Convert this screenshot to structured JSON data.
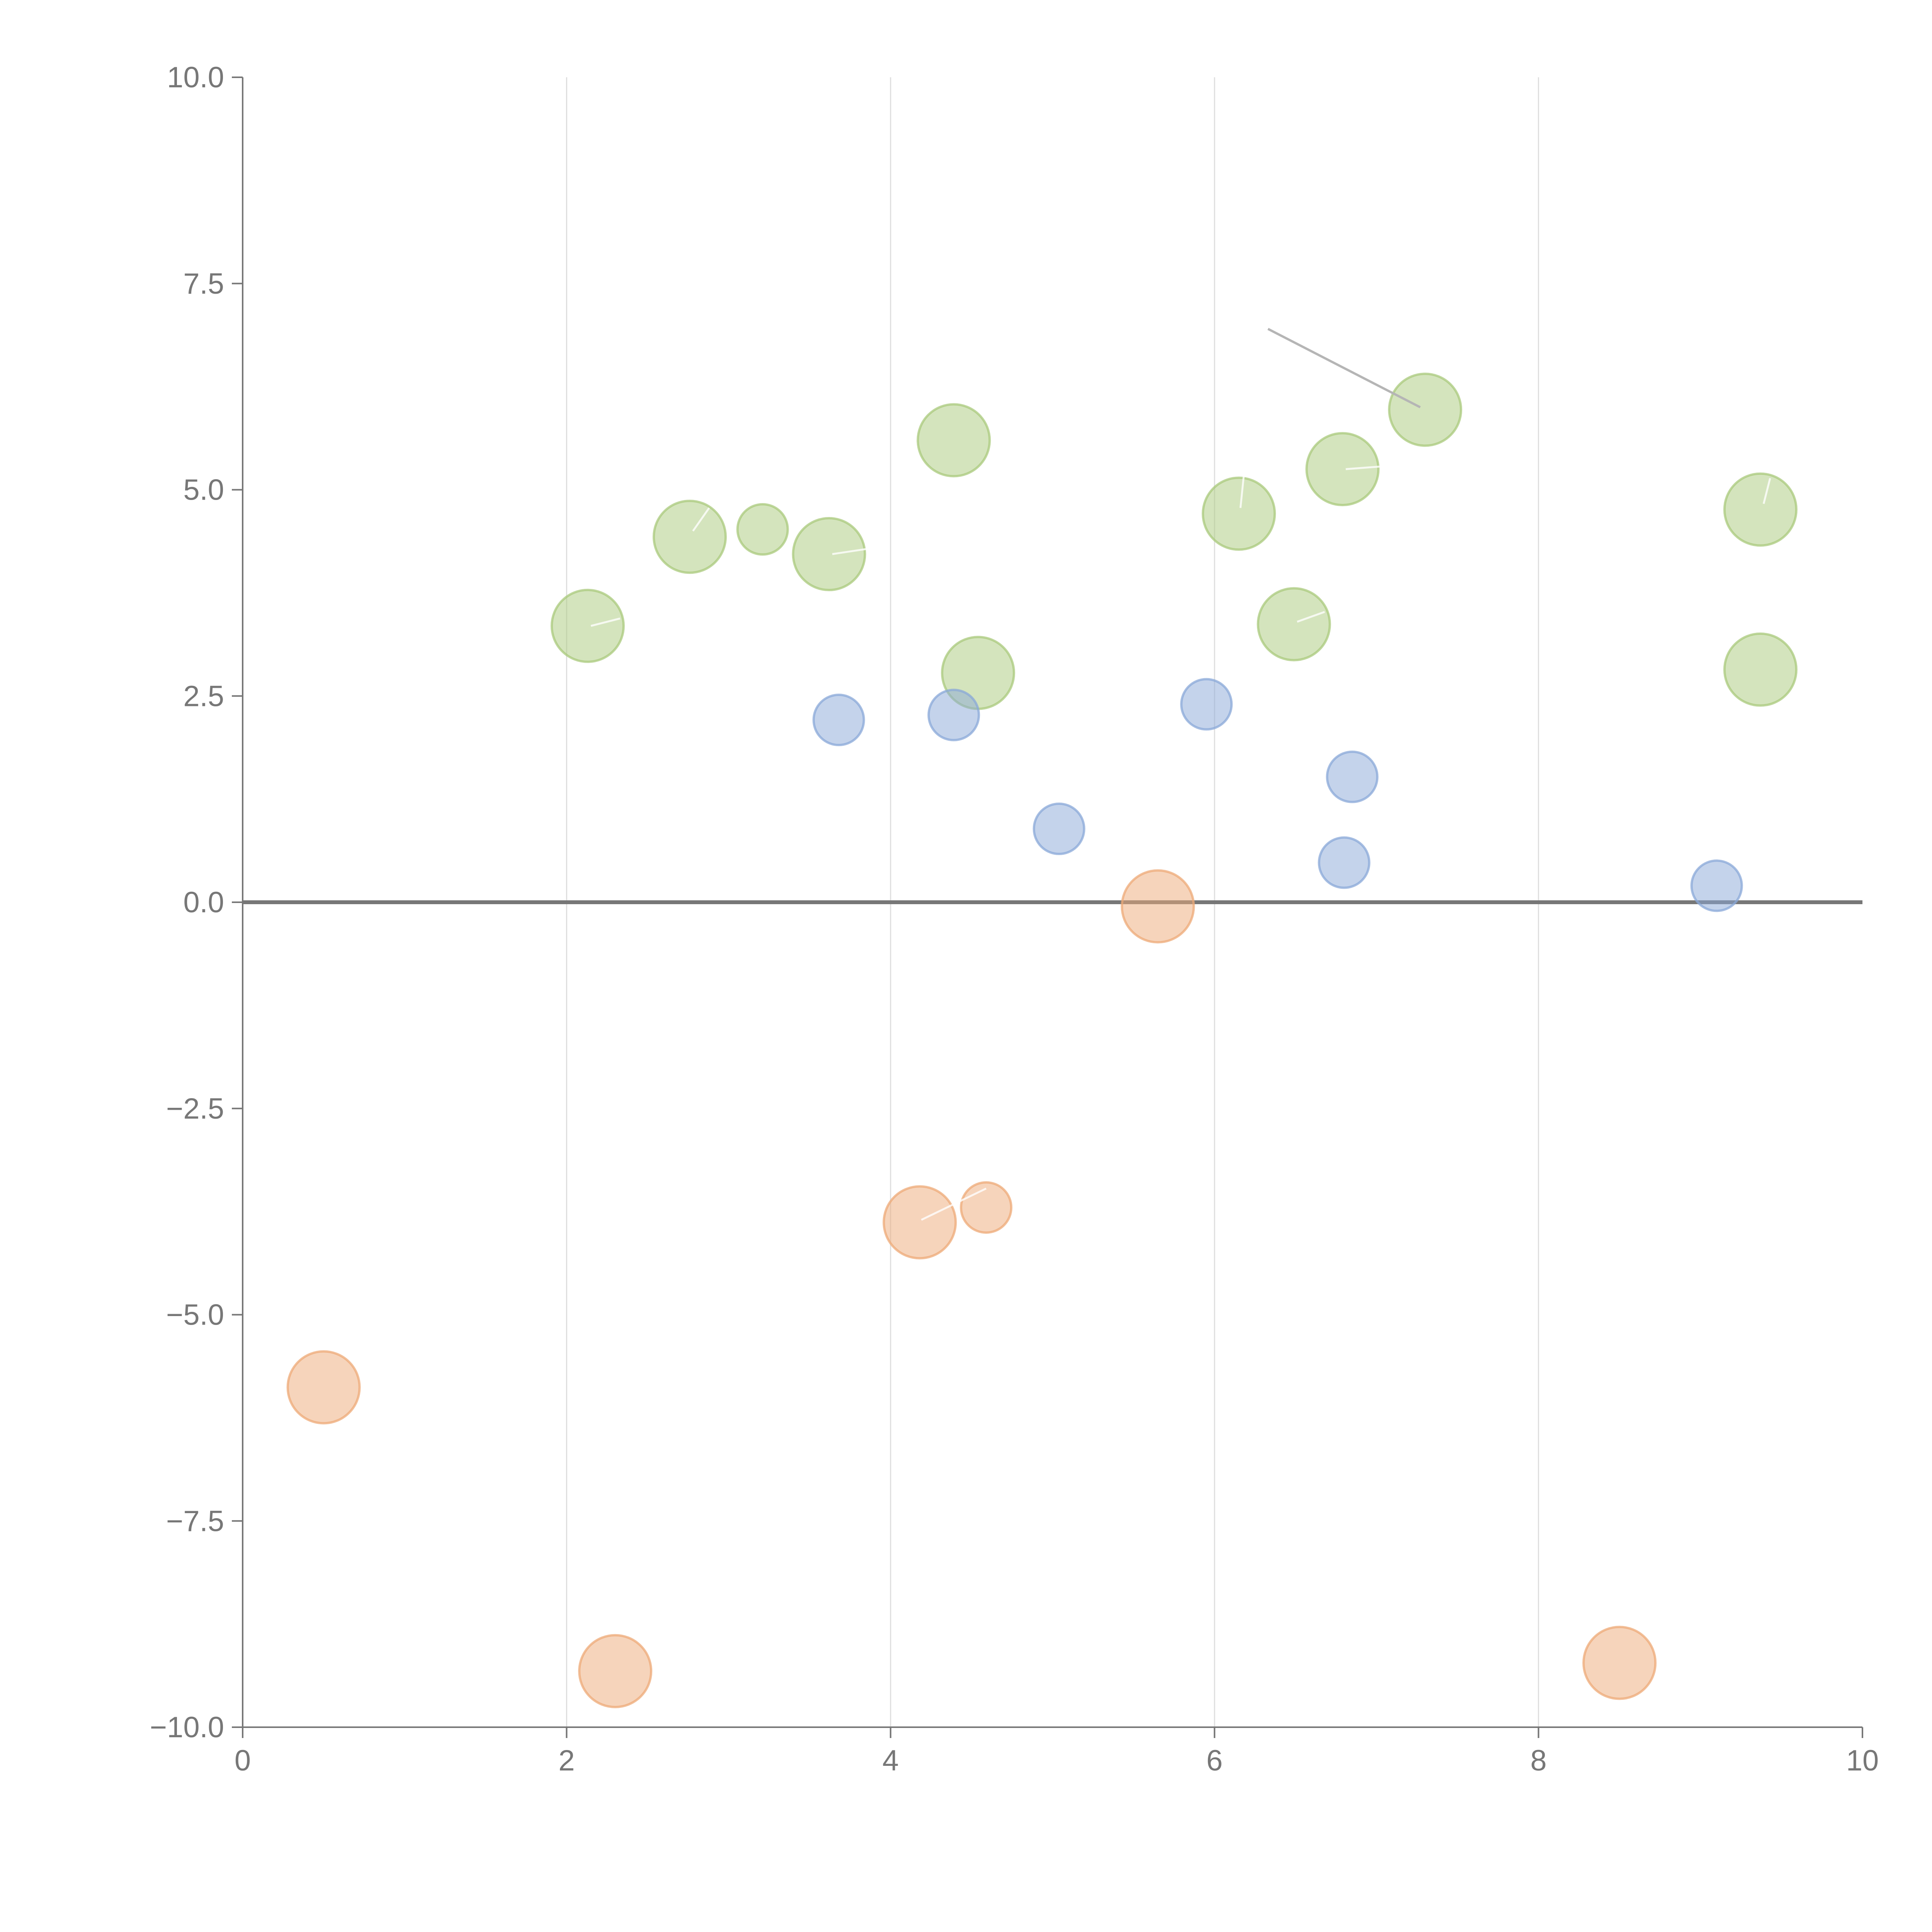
{
  "chart_data": {
    "type": "scatter",
    "variant": "bubble",
    "title": "",
    "xlabel": "",
    "ylabel": "",
    "xlim": [
      0,
      10
    ],
    "ylim": [
      -10,
      10
    ],
    "x_ticks": [
      "0",
      "2",
      "4",
      "6",
      "8",
      "10"
    ],
    "y_ticks": [
      "10.0",
      "7.5",
      "5.0",
      "2.5",
      "0.0",
      "−2.5",
      "−5.0",
      "−7.5",
      "−10.0"
    ],
    "x_tick_values": [
      0,
      2,
      4,
      6,
      8,
      10
    ],
    "y_tick_values": [
      10,
      7.5,
      5,
      2.5,
      0,
      -2.5,
      -5,
      -7.5,
      -10
    ],
    "grid": "vertical",
    "zero_line": true,
    "series": [
      {
        "name": "green",
        "color": "#a9c97c",
        "points": [
          {
            "x": 2.13,
            "y": 3.35,
            "size": 0.9
          },
          {
            "x": 2.76,
            "y": 4.43,
            "size": 0.9
          },
          {
            "x": 3.21,
            "y": 4.52,
            "size": 0.5
          },
          {
            "x": 3.62,
            "y": 4.22,
            "size": 0.9
          },
          {
            "x": 4.39,
            "y": 5.6,
            "size": 0.9
          },
          {
            "x": 4.54,
            "y": 2.78,
            "size": 0.9
          },
          {
            "x": 6.15,
            "y": 4.71,
            "size": 0.9
          },
          {
            "x": 6.49,
            "y": 3.37,
            "size": 0.9
          },
          {
            "x": 6.79,
            "y": 5.25,
            "size": 0.9
          },
          {
            "x": 7.3,
            "y": 5.97,
            "size": 0.9
          },
          {
            "x": 9.37,
            "y": 4.76,
            "size": 0.9
          },
          {
            "x": 9.37,
            "y": 2.82,
            "size": 0.9
          }
        ]
      },
      {
        "name": "blue",
        "color": "#8aa8d8",
        "points": [
          {
            "x": 3.68,
            "y": 2.21,
            "size": 0.5
          },
          {
            "x": 4.39,
            "y": 2.27,
            "size": 0.5
          },
          {
            "x": 5.04,
            "y": 0.89,
            "size": 0.5
          },
          {
            "x": 5.95,
            "y": 2.4,
            "size": 0.5
          },
          {
            "x": 6.8,
            "y": 0.48,
            "size": 0.5
          },
          {
            "x": 6.85,
            "y": 1.52,
            "size": 0.5
          },
          {
            "x": 9.1,
            "y": 0.2,
            "size": 0.5
          }
        ]
      },
      {
        "name": "orange",
        "color": "#eeaa77",
        "points": [
          {
            "x": 0.5,
            "y": -5.88,
            "size": 0.9
          },
          {
            "x": 2.3,
            "y": -9.32,
            "size": 0.9
          },
          {
            "x": 4.18,
            "y": -3.88,
            "size": 0.9
          },
          {
            "x": 4.59,
            "y": -3.7,
            "size": 0.5
          },
          {
            "x": 5.65,
            "y": -0.05,
            "size": 0.9
          },
          {
            "x": 8.5,
            "y": -9.22,
            "size": 0.9
          }
        ]
      }
    ],
    "annotations": [
      {
        "type": "leader",
        "x1": 2.15,
        "y1": 3.35,
        "x2": 2.33,
        "y2": 3.44
      },
      {
        "type": "leader",
        "x1": 2.78,
        "y1": 4.5,
        "x2": 2.88,
        "y2": 4.78
      },
      {
        "type": "leader",
        "x1": 3.64,
        "y1": 4.22,
        "x2": 3.98,
        "y2": 4.32
      },
      {
        "type": "leader",
        "x1": 6.16,
        "y1": 4.78,
        "x2": 6.18,
        "y2": 5.16
      },
      {
        "type": "leader",
        "x1": 6.81,
        "y1": 5.25,
        "x2": 7.08,
        "y2": 5.29
      },
      {
        "type": "leader",
        "x1": 6.51,
        "y1": 3.4,
        "x2": 6.68,
        "y2": 3.52
      },
      {
        "type": "leader",
        "x1": 9.39,
        "y1": 4.83,
        "x2": 9.43,
        "y2": 5.14
      },
      {
        "type": "leader",
        "x1": 4.19,
        "y1": -3.85,
        "x2": 4.59,
        "y2": -3.47
      },
      {
        "type": "callout",
        "x1": 6.33,
        "y1": 6.95,
        "x2": 7.27,
        "y2": 6.0
      }
    ]
  }
}
